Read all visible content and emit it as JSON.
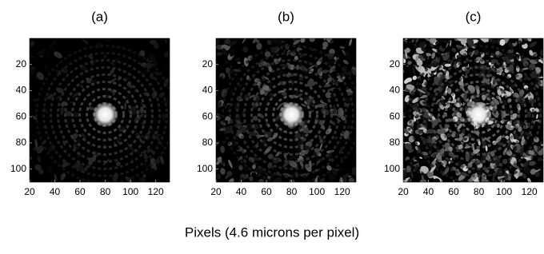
{
  "xlabel": "Pixels (4.6 microns per pixel)",
  "chart_data": [
    {
      "type": "image",
      "title": "(a)",
      "xlim": [
        20,
        131
      ],
      "ylim": [
        110,
        0
      ],
      "xticks": [
        20,
        40,
        60,
        80,
        100,
        120
      ],
      "yticks": [
        20,
        40,
        60,
        80,
        100
      ],
      "colormap": "gray"
    },
    {
      "type": "image",
      "title": "(b)",
      "xlim": [
        20,
        131
      ],
      "ylim": [
        110,
        0
      ],
      "xticks": [
        20,
        40,
        60,
        80,
        100,
        120
      ],
      "yticks": [
        20,
        40,
        60,
        80,
        100
      ],
      "colormap": "gray"
    },
    {
      "type": "image",
      "title": "(c)",
      "xlim": [
        20,
        131
      ],
      "ylim": [
        110,
        0
      ],
      "xticks": [
        20,
        40,
        60,
        80,
        100,
        120
      ],
      "yticks": [
        20,
        40,
        60,
        80,
        100
      ],
      "colormap": "gray"
    }
  ]
}
